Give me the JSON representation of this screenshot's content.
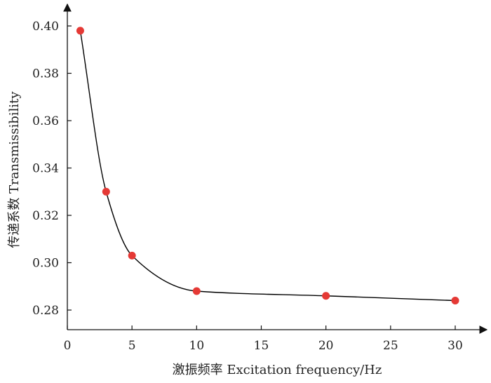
{
  "chart_data": {
    "type": "line",
    "xlabel": "激振频率 Excitation frequency/Hz",
    "ylabel": "传递系数 Transmissibility",
    "xlim": [
      0,
      30
    ],
    "ylim": [
      0.27,
      0.41
    ],
    "xticks": [
      0,
      5,
      10,
      15,
      20,
      25,
      30
    ],
    "yticks": [
      0.28,
      0.3,
      0.32,
      0.34,
      0.36,
      0.38,
      0.4
    ],
    "ytick_labels": [
      "0.28",
      "0.30",
      "0.32",
      "0.34",
      "0.36",
      "0.38",
      "0.40"
    ],
    "grid": false,
    "series": [
      {
        "x": [
          1,
          3,
          5,
          10,
          20,
          30
        ],
        "y": [
          0.398,
          0.33,
          0.303,
          0.288,
          0.286,
          0.284
        ],
        "smooth": true,
        "marker": "circle",
        "line_color": "#000000",
        "marker_color": "#e53935"
      }
    ]
  }
}
